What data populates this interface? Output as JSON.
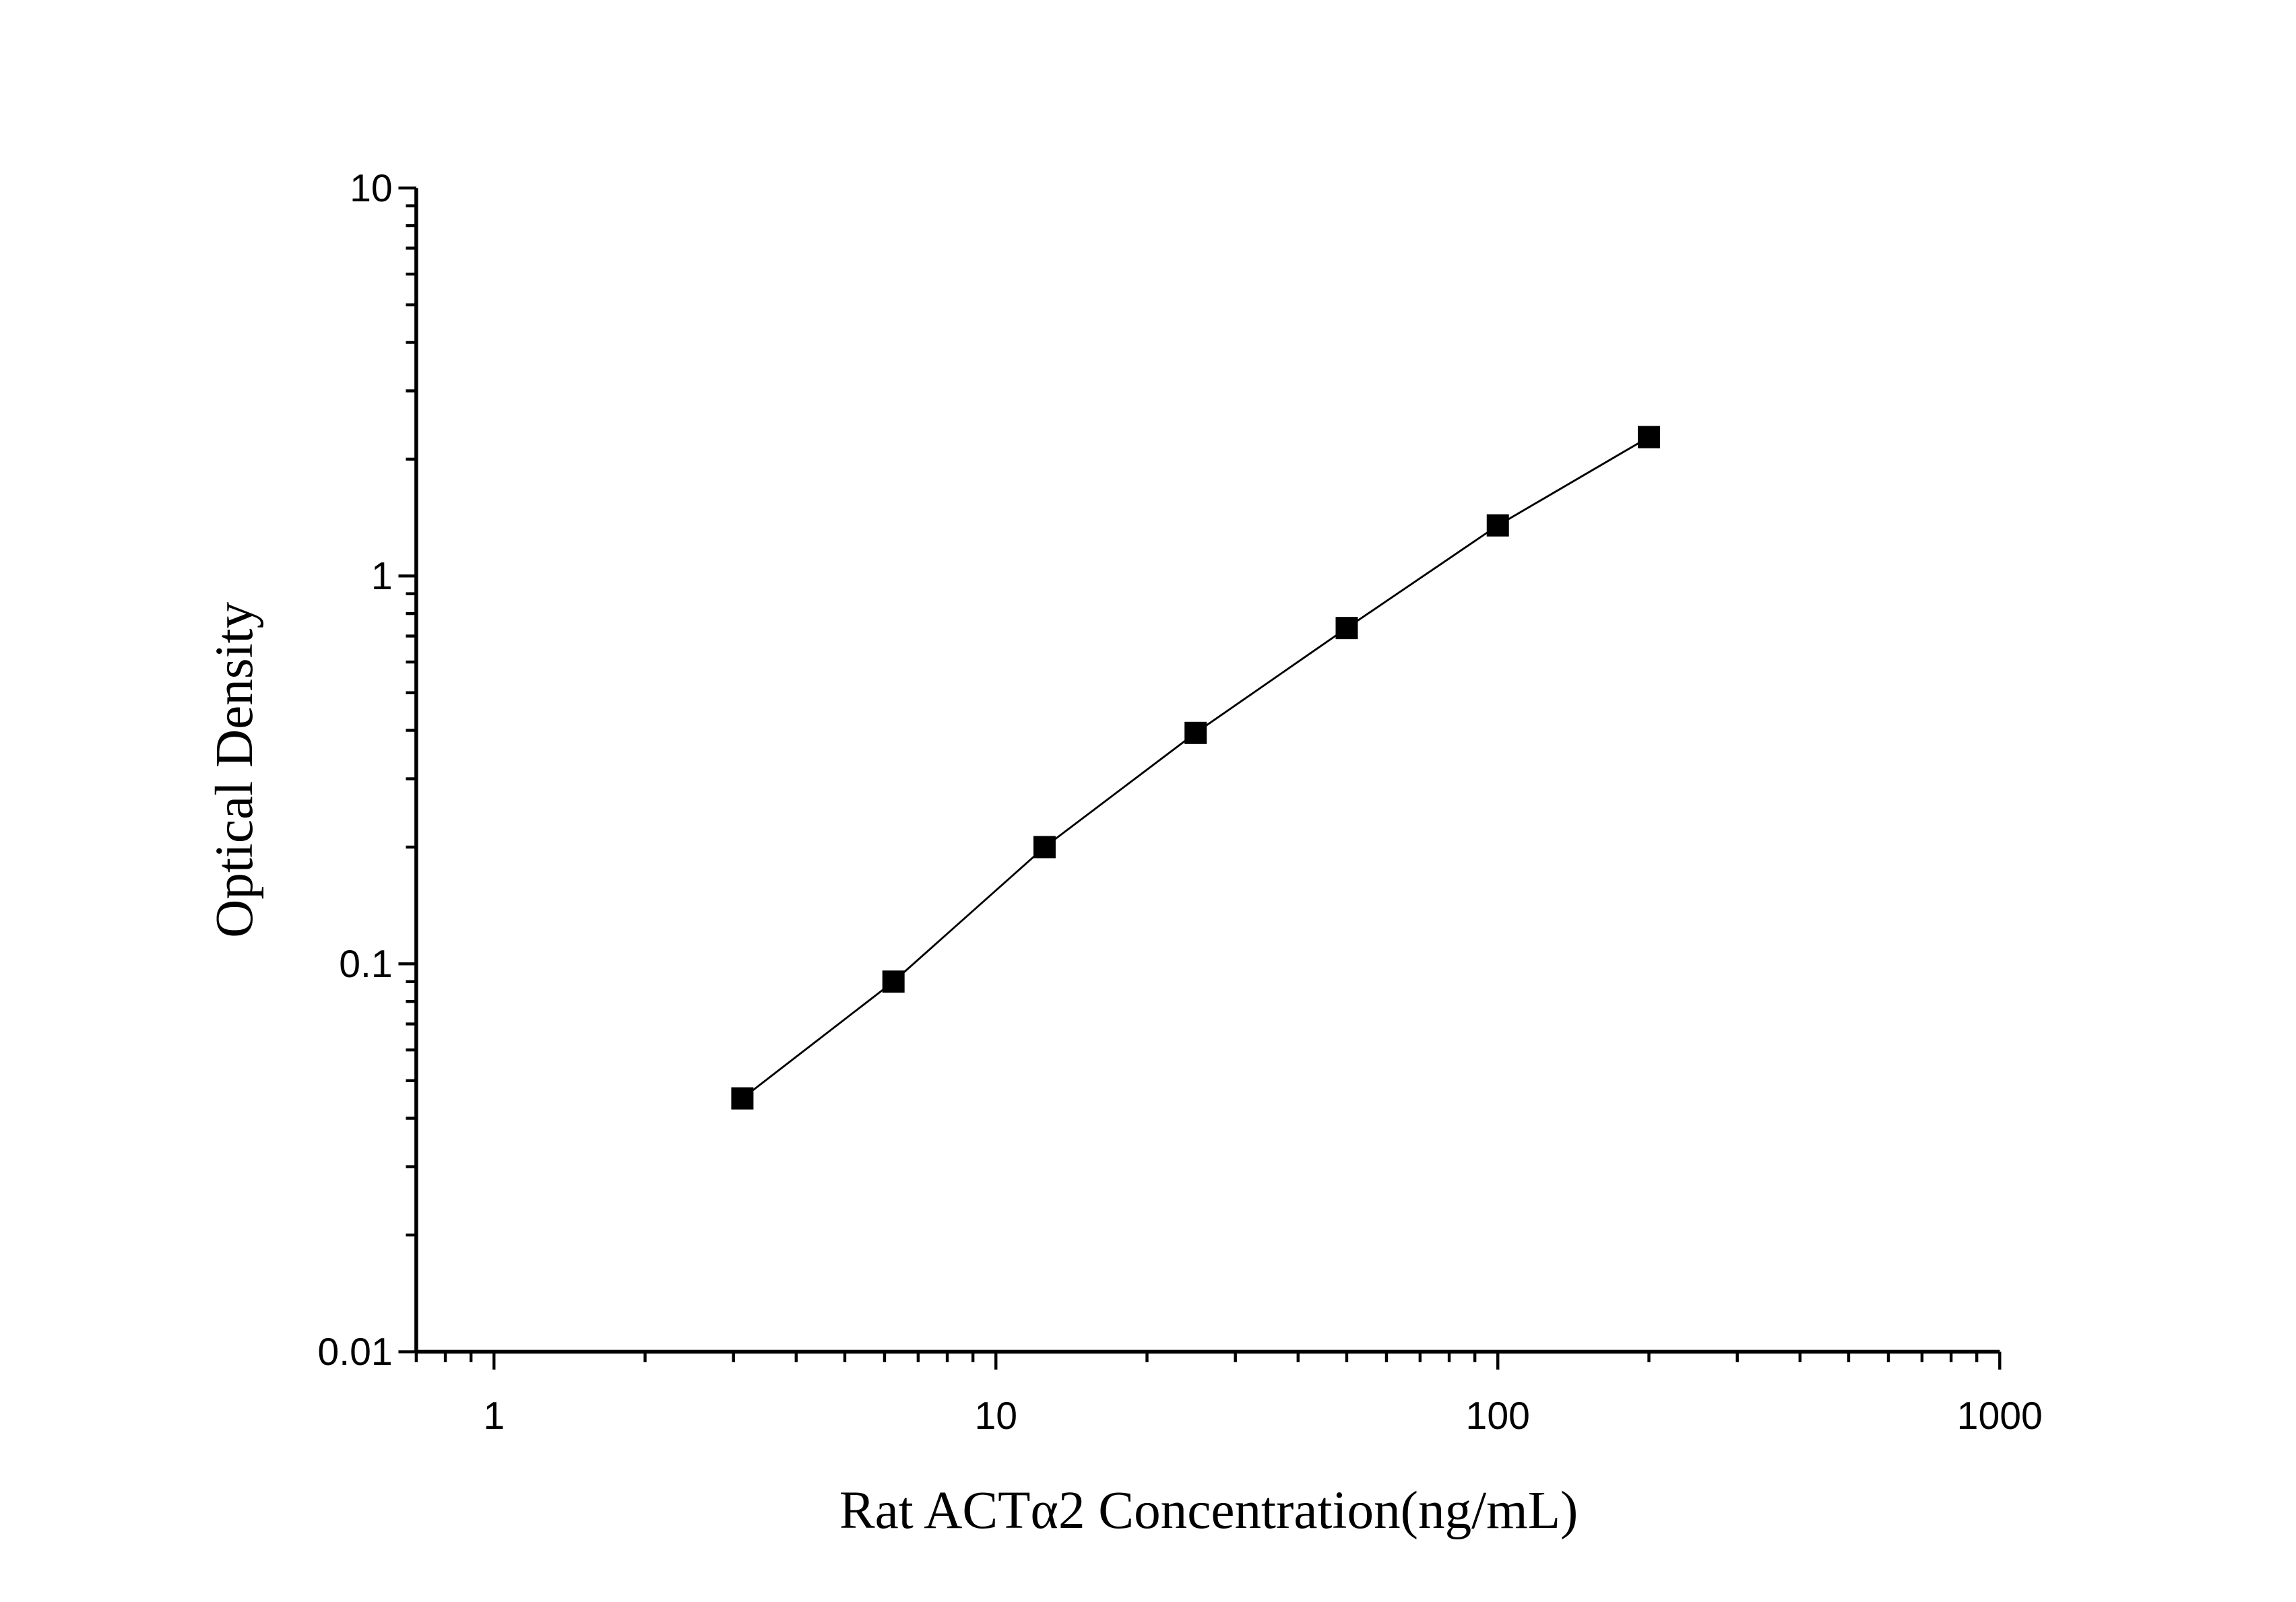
{
  "chart_data": {
    "type": "line",
    "title": "",
    "xlabel": "Rat ACTα2 Concentration(ng/mL)",
    "ylabel": "Optical Density",
    "xscale": "log",
    "yscale": "log",
    "xlim": [
      0.7,
      1000
    ],
    "ylim": [
      0.01,
      10
    ],
    "x_ticks": [
      "1",
      "10",
      "100",
      "1000"
    ],
    "y_ticks": [
      "0.01",
      "0.1",
      "1",
      "10"
    ],
    "grid": false,
    "marker": "square",
    "color": "#000000",
    "series": [
      {
        "x": [
          3.125,
          6.25,
          12.5,
          25,
          50,
          100,
          200
        ],
        "y": [
          0.045,
          0.09,
          0.2,
          0.394,
          0.734,
          1.35,
          2.28
        ]
      }
    ]
  }
}
